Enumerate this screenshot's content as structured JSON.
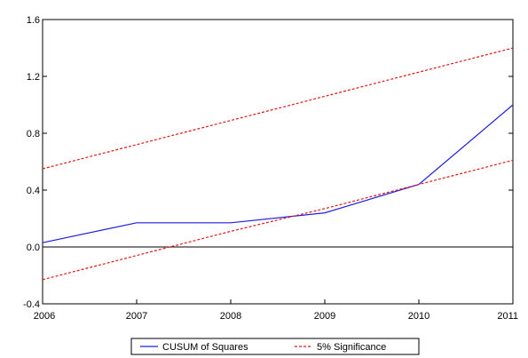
{
  "chart_data": {
    "type": "line",
    "title": "",
    "xlabel": "",
    "ylabel": "",
    "x": [
      2006,
      2007,
      2008,
      2009,
      2010,
      2011
    ],
    "x_tick_labels": [
      "2006",
      "2007",
      "2008",
      "2009",
      "2010",
      "2011"
    ],
    "y_tick_labels": [
      "-0.4",
      "0.0",
      "0.4",
      "0.8",
      "1.2",
      "1.6"
    ],
    "xlim": [
      2006,
      2011
    ],
    "ylim": [
      -0.4,
      1.6
    ],
    "grid": false,
    "zero_line": true,
    "legend_position": "bottom",
    "series": [
      {
        "name": "CUSUM of Squares",
        "style": "solid",
        "color": "#1f1fe0",
        "values": [
          0.03,
          0.17,
          0.17,
          0.24,
          0.44,
          1.0
        ]
      },
      {
        "name": "5% Significance",
        "style": "dashed",
        "color": "#e01818",
        "values": [
          0.55,
          0.72,
          0.89,
          1.06,
          1.23,
          1.4
        ]
      },
      {
        "name": "",
        "style": "dashed",
        "color": "#e01818",
        "values": [
          -0.23,
          -0.06,
          0.11,
          0.27,
          0.44,
          0.61
        ]
      }
    ]
  }
}
